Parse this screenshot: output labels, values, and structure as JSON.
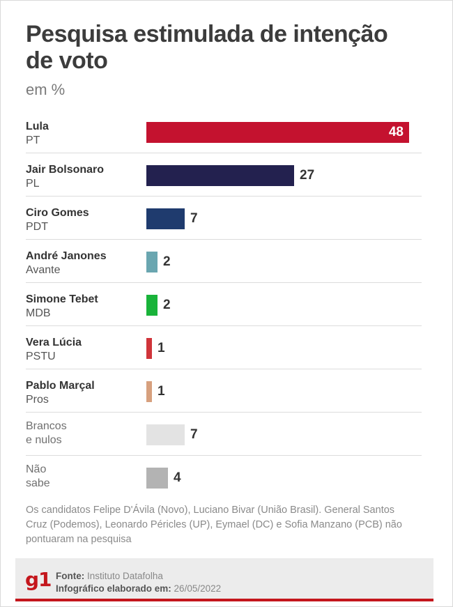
{
  "header": {
    "title": "Pesquisa estimulada de intenção de voto",
    "subtitle": "em %"
  },
  "chart_data": {
    "type": "bar",
    "orientation": "horizontal",
    "title": "Pesquisa estimulada de intenção de voto",
    "subtitle": "em %",
    "categories": [
      "Lula",
      "Jair Bolsonaro",
      "Ciro Gomes",
      "André Janones",
      "Simone Tebet",
      "Vera Lúcia",
      "Pablo Marçal",
      "Brancos e nulos",
      "Não sabe"
    ],
    "parties": [
      "PT",
      "PL",
      "PDT",
      "Avante",
      "MDB",
      "PSTU",
      "Pros",
      "",
      ""
    ],
    "values": [
      48,
      27,
      7,
      2,
      2,
      1,
      1,
      7,
      4
    ],
    "colors": [
      "#c4122f",
      "#23214f",
      "#1f3b6e",
      "#6aa6b0",
      "#19b33a",
      "#d0343a",
      "#d7a07e",
      "#e3e3e3",
      "#b3b3b3"
    ],
    "xlim": [
      0,
      48
    ],
    "grid": false
  },
  "note": "Os candidatos Felipe D'Ávila (Novo), Luciano Bivar (União Brasil). General Santos Cruz (Podemos), Leonardo Péricles (UP), Eymael (DC) e Sofia Manzano (PCB) não pontuaram na pesquisa",
  "footer": {
    "logo": "g1",
    "source_label": "Fonte:",
    "source_value": "Instituto Datafolha",
    "date_label": "Infográfico elaborado em:",
    "date_value": "26/05/2022"
  }
}
